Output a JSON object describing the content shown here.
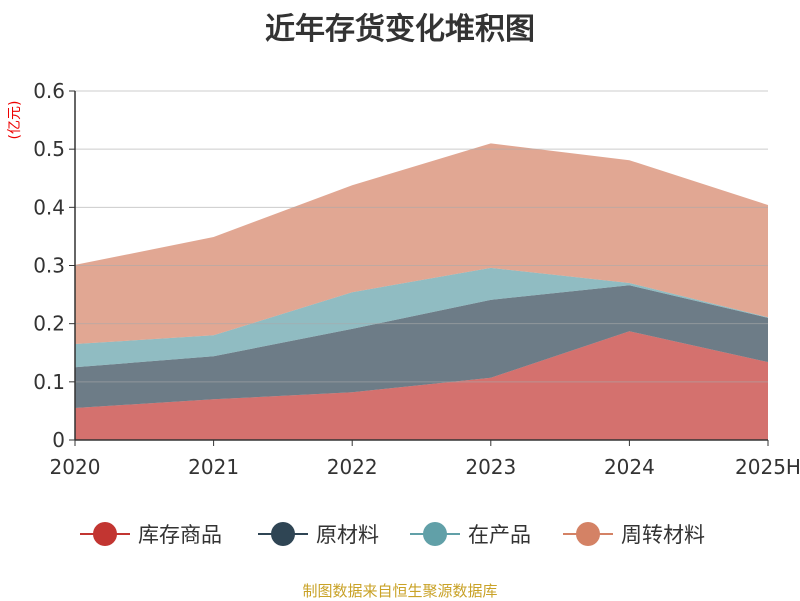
{
  "chart_data": {
    "type": "area",
    "stacked": true,
    "title": "近年存货变化堆积图",
    "ylabel": "(亿元)",
    "xlabel": "",
    "categories": [
      "2020",
      "2021",
      "2022",
      "2023",
      "2024",
      "2025H"
    ],
    "ylim": [
      0,
      0.6
    ],
    "yticks": [
      "0",
      "0.1",
      "0.2",
      "0.3",
      "0.4",
      "0.5",
      "0.6"
    ],
    "grid": true,
    "legend_position": "bottom",
    "series": [
      {
        "name": "库存商品",
        "color": "#c23531",
        "values": [
          0.055,
          0.07,
          0.082,
          0.107,
          0.187,
          0.134
        ]
      },
      {
        "name": "原材料",
        "color": "#2f4554",
        "values": [
          0.07,
          0.074,
          0.109,
          0.134,
          0.079,
          0.076
        ]
      },
      {
        "name": "在产品",
        "color": "#61a0a8",
        "values": [
          0.04,
          0.036,
          0.063,
          0.055,
          0.004,
          0.001
        ]
      },
      {
        "name": "周转材料",
        "color": "#d48265",
        "values": [
          0.136,
          0.169,
          0.184,
          0.214,
          0.211,
          0.193
        ]
      }
    ]
  },
  "source": "制图数据来自恒生聚源数据库"
}
